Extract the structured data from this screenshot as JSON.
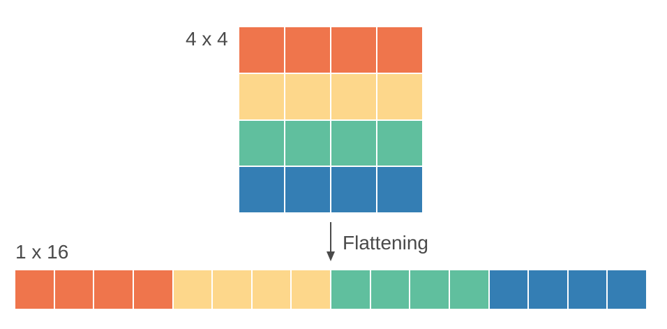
{
  "labels": {
    "matrix": "4 x 4",
    "vector": "1 x 16",
    "arrow": "Flattening"
  },
  "colors": {
    "row1": "#ef754c",
    "row2": "#fdd78b",
    "row3": "#60bf9e",
    "row4": "#347eb4",
    "text": "#4a4a4a",
    "arrow": "#4a4a4a"
  },
  "matrix": {
    "rows": 4,
    "cols": 4,
    "row_colors": [
      "row1",
      "row2",
      "row3",
      "row4"
    ]
  },
  "vector": {
    "length": 16,
    "segment_colors": [
      "row1",
      "row2",
      "row3",
      "row4"
    ]
  }
}
